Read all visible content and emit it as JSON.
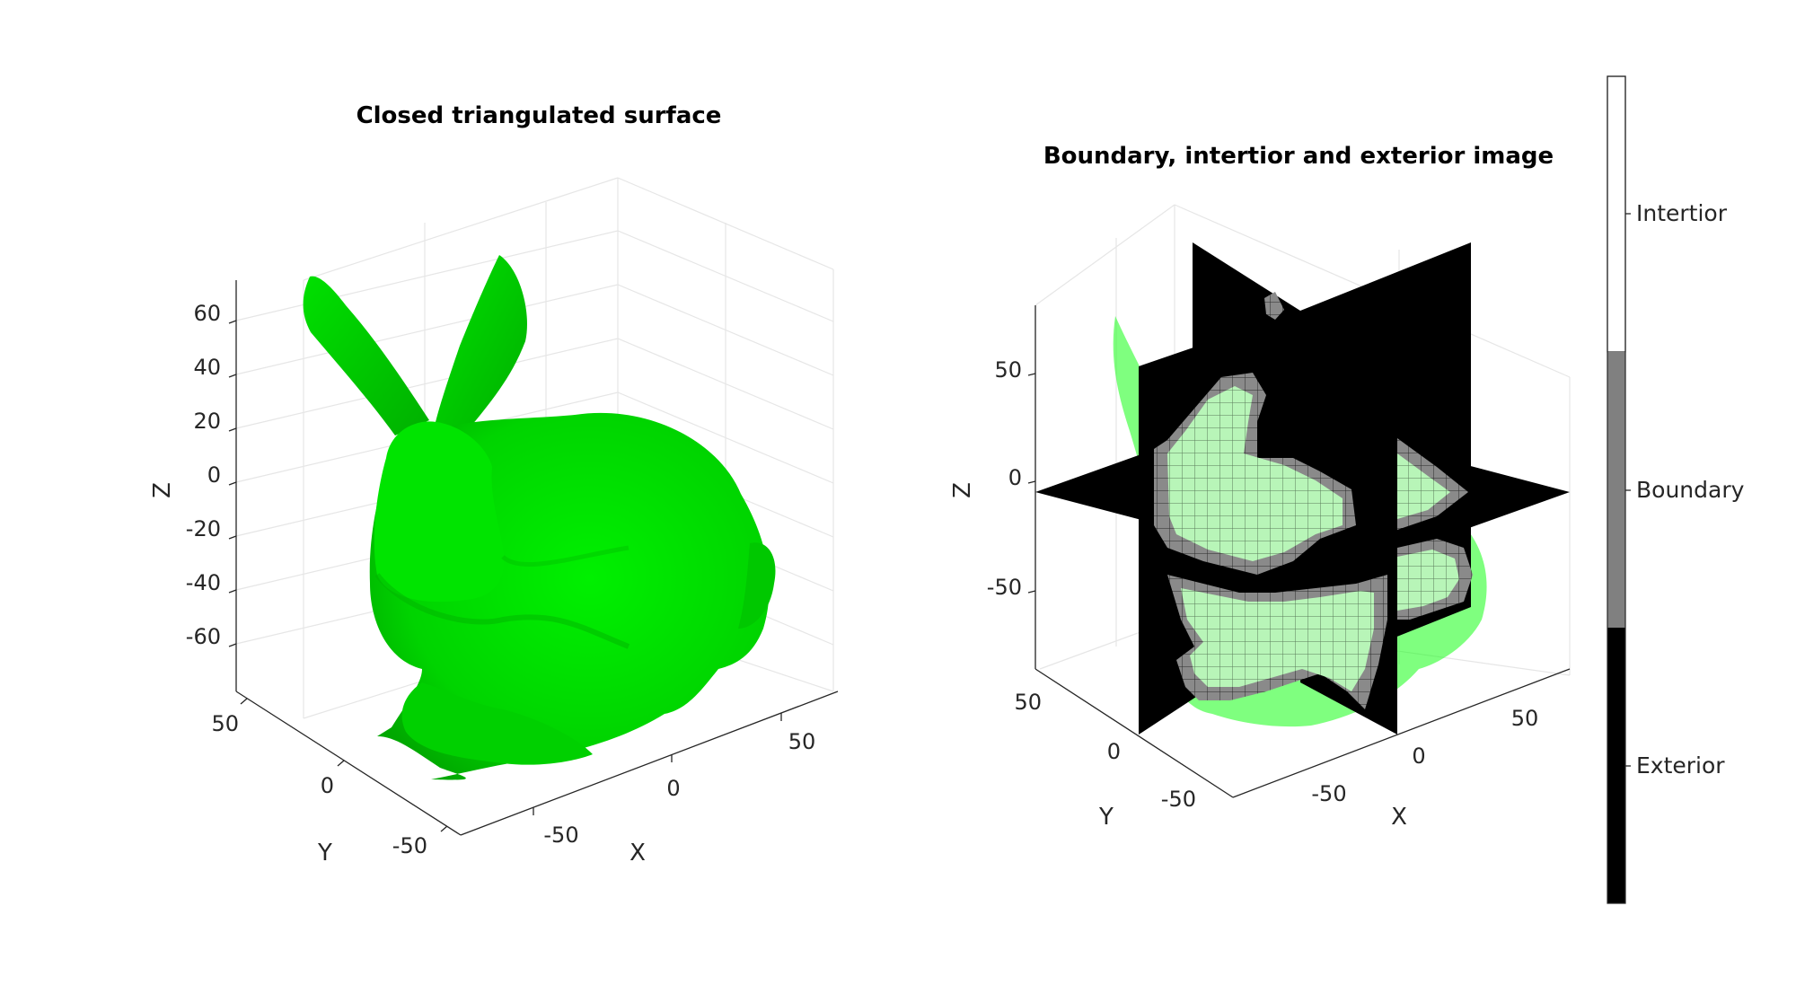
{
  "figure": {
    "left": {
      "title": "Closed triangulated surface",
      "z_ticks": [
        "60",
        "40",
        "20",
        "0",
        "-20",
        "-40",
        "-60"
      ],
      "y_ticks": [
        "50",
        "0",
        "-50"
      ],
      "x_ticks": [
        "-50",
        "0",
        "50"
      ],
      "xlabel": "X",
      "ylabel": "Y",
      "zlabel": "Z",
      "surface_color": "#00ff00"
    },
    "right": {
      "title": "Boundary, intertior and exterior image",
      "z_ticks": [
        "50",
        "0",
        "-50"
      ],
      "y_ticks": [
        "50",
        "0",
        "-50"
      ],
      "x_ticks": [
        "-50",
        "0",
        "50"
      ],
      "xlabel": "X",
      "ylabel": "Y",
      "zlabel": "Z"
    },
    "colorbar": {
      "labels": [
        "Intertior",
        "Boundary",
        "Exterior"
      ],
      "colors": [
        "#ffffff",
        "#808080",
        "#000000"
      ]
    }
  }
}
